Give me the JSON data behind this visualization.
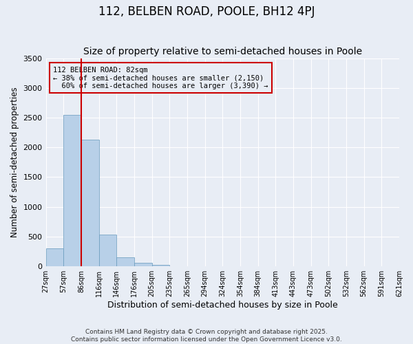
{
  "title": "112, BELBEN ROAD, POOLE, BH12 4PJ",
  "subtitle": "Size of property relative to semi-detached houses in Poole",
  "xlabel": "Distribution of semi-detached houses by size in Poole",
  "ylabel": "Number of semi-detached properties",
  "bar_values": [
    300,
    2550,
    2130,
    530,
    150,
    60,
    30,
    0,
    0,
    0,
    0,
    0,
    0,
    0,
    0,
    0,
    0,
    0,
    0,
    0
  ],
  "bin_labels": [
    "27sqm",
    "57sqm",
    "86sqm",
    "116sqm",
    "146sqm",
    "176sqm",
    "205sqm",
    "235sqm",
    "265sqm",
    "294sqm",
    "324sqm",
    "354sqm",
    "384sqm",
    "413sqm",
    "443sqm",
    "473sqm",
    "502sqm",
    "532sqm",
    "562sqm",
    "591sqm",
    "621sqm"
  ],
  "bar_color": "#b8d0e8",
  "bar_edge_color": "#6699bb",
  "vline_color": "#cc0000",
  "property_label": "112 BELBEN ROAD: 82sqm",
  "pct_smaller": 38,
  "pct_smaller_count": 2150,
  "pct_larger": 60,
  "pct_larger_count": 3390,
  "ylim": [
    0,
    3500
  ],
  "bg_color": "#e8edf5",
  "grid_color": "#ffffff",
  "annotation_box_color": "#cc0000",
  "footer": "Contains HM Land Registry data © Crown copyright and database right 2025.\nContains public sector information licensed under the Open Government Licence v3.0.",
  "title_fontsize": 12,
  "subtitle_fontsize": 10,
  "tick_fontsize": 7,
  "ylabel_fontsize": 8.5,
  "xlabel_fontsize": 9,
  "footer_fontsize": 6.5
}
